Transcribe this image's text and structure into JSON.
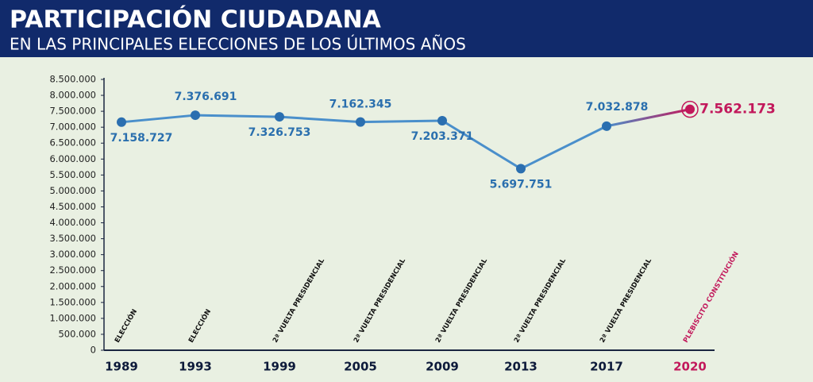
{
  "chart_data": {
    "type": "line",
    "title": "PARTICIPACIÓN CIUDADANA",
    "subtitle": "EN LAS PRINCIPALES ELECCIONES DE LOS ÚLTIMOS AÑOS",
    "categories": [
      "1989",
      "1993",
      "1999",
      "2005",
      "2009",
      "2013",
      "2017",
      "2020"
    ],
    "values": [
      7158727,
      7376691,
      7326753,
      7162345,
      7203371,
      5697751,
      7032878,
      7562173
    ],
    "value_labels": [
      "7.158.727",
      "7.376.691",
      "7.326.753",
      "7.162.345",
      "7.203.371",
      "5.697.751",
      "7.032.878",
      "7.562.173"
    ],
    "notes": [
      "ELECCIÓN",
      "ELECCIÓN",
      "2ª VUELTA PRESIDENCIAL",
      "2ª VUELTA PRESIDENCIAL",
      "2ª VUELTA PRESIDENCIAL",
      "2ª VUELTA PRESIDENCIAL",
      "2ª VUELTA PRESIDENCIAL",
      "PLEBISCITO CONSTITUCIÓN"
    ],
    "color": "#4a8fcb",
    "marker_color": "#2b6fb0",
    "highlight_color": "#c2185b",
    "ylim": [
      0,
      8500000
    ],
    "yticks": [
      0,
      {
        "value": 500000,
        "label": "500.000"
      },
      {
        "value": 1000000,
        "label": "1.000.000"
      },
      {
        "value": 1500000,
        "label": "1.500.000"
      },
      {
        "value": 2000000,
        "label": "2.000.000"
      },
      {
        "value": 2500000,
        "label": "2.500.000"
      },
      {
        "value": 3000000,
        "label": "3.000.000"
      },
      {
        "value": 3500000,
        "label": "3.500.000"
      },
      {
        "value": 4000000,
        "label": "4.000.000"
      },
      {
        "value": 4500000,
        "label": "4.500.000"
      },
      {
        "value": 5000000,
        "label": "5.000.000"
      },
      {
        "value": 5500000,
        "label": "5.500.000"
      },
      {
        "value": 6000000,
        "label": "6.000.000"
      },
      {
        "value": 6500000,
        "label": "6.500.000"
      },
      {
        "value": 7000000,
        "label": "7.000.000"
      },
      {
        "value": 7500000,
        "label": "7.500.000"
      },
      {
        "value": 8000000,
        "label": "8.000.000"
      },
      {
        "value": 8500000,
        "label": "8.500.000"
      }
    ],
    "grid": false
  }
}
